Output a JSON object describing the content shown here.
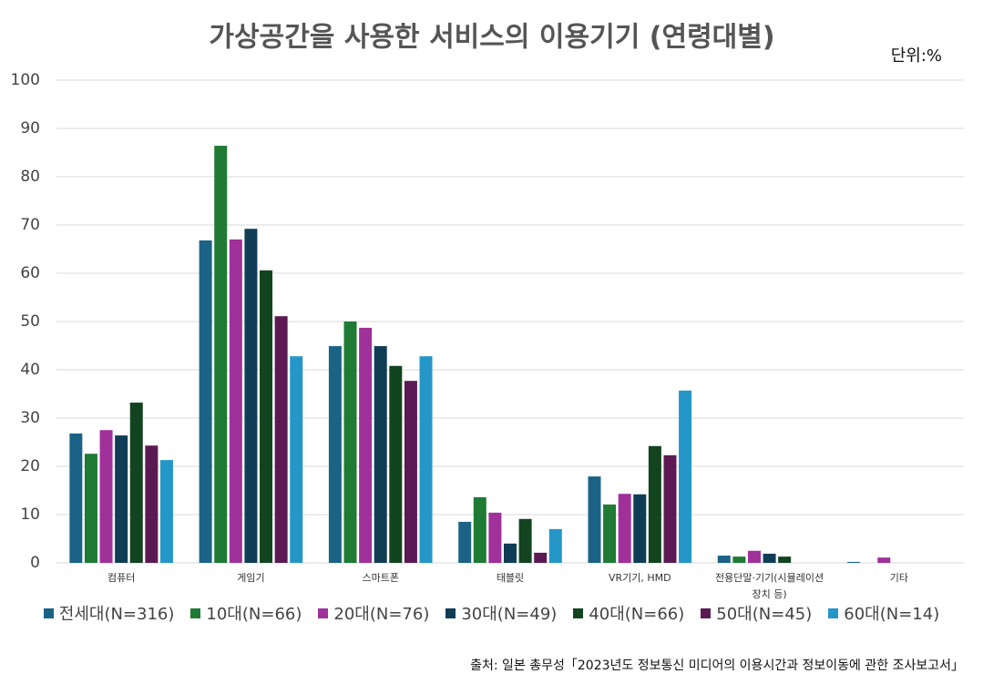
{
  "chart_data": {
    "type": "bar",
    "title": "가상공간을 사용한 서비스의 이용기기 (연령대별)",
    "unit": "단위:%",
    "source": "출처: 일본 총무성「2023년도 정보통신 미디어의 이용시간과 정보이동에 관한 조사보고서」",
    "categories": [
      "컴퓨터",
      "게임기",
      "스마트폰",
      "태블릿",
      "VR기기, HMD",
      "전용단말·기기(시뮬레이션 장치 등)",
      "기타"
    ],
    "series": [
      {
        "name": "전세대(N=316)",
        "color": "#1b6386",
        "values": [
          26.8,
          66.8,
          44.9,
          8.5,
          17.9,
          1.5,
          0.2
        ]
      },
      {
        "name": "10대(N=66)",
        "color": "#1f7a33",
        "values": [
          22.6,
          86.4,
          50.0,
          13.6,
          12.1,
          1.3,
          0
        ]
      },
      {
        "name": "20대(N=76)",
        "color": "#a0309a",
        "values": [
          27.5,
          67.0,
          48.7,
          10.4,
          14.3,
          2.5,
          1.1
        ]
      },
      {
        "name": "30대(N=49)",
        "color": "#0f3d56",
        "values": [
          26.4,
          69.2,
          44.9,
          4.0,
          14.2,
          1.9,
          0
        ]
      },
      {
        "name": "40대(N=66)",
        "color": "#12451f",
        "values": [
          33.2,
          60.6,
          40.8,
          9.1,
          24.2,
          1.3,
          0
        ]
      },
      {
        "name": "50대(N=45)",
        "color": "#5c1a55",
        "values": [
          24.3,
          51.1,
          37.7,
          2.1,
          22.3,
          0,
          0
        ]
      },
      {
        "name": "60대(N=14)",
        "color": "#2596c8",
        "values": [
          21.3,
          42.8,
          42.8,
          7.0,
          35.7,
          0,
          0
        ]
      }
    ],
    "ylim": [
      0,
      100
    ],
    "yticks": [
      0,
      10,
      20,
      30,
      40,
      50,
      60,
      70,
      80,
      90,
      100
    ],
    "grid": true
  }
}
